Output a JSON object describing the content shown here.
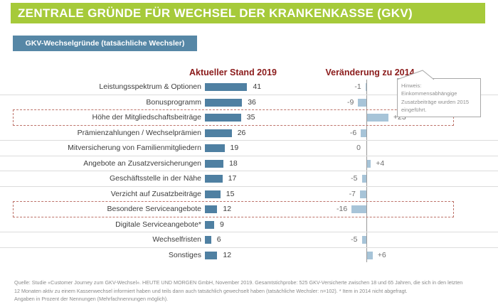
{
  "header": {
    "title": "ZENTRALE GRÜNDE FÜR WECHSEL DER KRANKENKASSE (GKV)"
  },
  "badge": {
    "label": "GKV-Wechselgründe (tatsächliche Wechsler)"
  },
  "columns": {
    "left": "Aktueller Stand 2019",
    "right": "Veränderung zu 2014"
  },
  "callout": {
    "text": "Hinweis: Einkommensabhängige Zusatzbeiträge wurden 2015 eingeführt."
  },
  "chart_data": {
    "type": "bar",
    "title": "GKV-Wechselgründe (tatsächliche Wechsler)",
    "unit": "Prozent der Nennungen",
    "categories": [
      "Leistungsspektrum & Optionen",
      "Bonusprogramm",
      "Höhe der Mitgliedschaftsbeiträge",
      "Prämienzahlungen / Wechselprämien",
      "Mitversicherung von Familienmitgliedern",
      "Angebote an Zusatzversicherungen",
      "Geschäftsstelle in der Nähe",
      "Verzicht auf Zusatzbeiträge",
      "Besondere Serviceangebote",
      "Digitale Serviceangebote*",
      "Wechselfristen",
      "Sonstiges"
    ],
    "series": [
      {
        "name": "Aktueller Stand 2019",
        "values": [
          41,
          36,
          35,
          26,
          19,
          18,
          17,
          15,
          12,
          9,
          6,
          12
        ]
      },
      {
        "name": "Veränderung zu 2014",
        "values": [
          -1,
          -9,
          23,
          -6,
          0,
          4,
          -5,
          -7,
          -16,
          null,
          -5,
          6
        ]
      }
    ],
    "change_labels": [
      "-1",
      "-9",
      "+23",
      "-6",
      "0",
      "+4",
      "-5",
      "-7",
      "-16",
      "",
      "-5",
      "+6"
    ],
    "highlighted_rows": [
      "Höhe der Mitgliedschaftsbeiträge",
      "Besondere Serviceangebote"
    ]
  },
  "footer": {
    "lines": [
      "Quelle: Studie «Customer Journey zum GKV-Wechsel». HEUTE UND MORGEN GmbH, November 2019. Gesamtstichprobe: 525 GKV-Versicherte zwischen 18 und 65 Jahren, die sich in den letzten",
      "12 Monaten aktiv zu einem Kassenwechsel informiert haben und teils dann auch tatsächlich gewechselt haben (tatsächliche Wechsler: n=102). * Item in 2014 nicht abgefragt.",
      "Angaben in Prozent der Nennungen (Mehrfachnennungen möglich)."
    ]
  },
  "colors": {
    "header_green": "#a6ca3a",
    "badge_blue": "#5687a6",
    "bar_blue": "#4f80a2",
    "change_bar_blue": "#a7c4d8",
    "column_header_red": "#8b1b1b",
    "highlight_dashed_red": "#bd7269"
  }
}
